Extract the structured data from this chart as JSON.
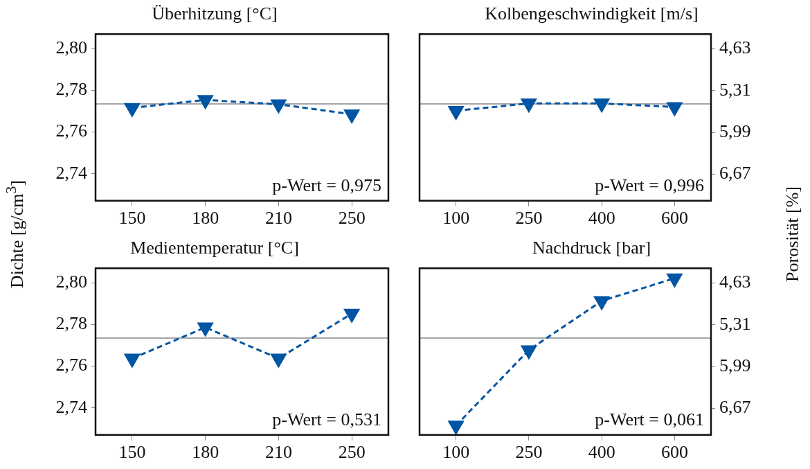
{
  "chart_data": [
    {
      "type": "line",
      "title": "Überhitzung [°C]",
      "ylabel": "Dichte [g/cm$^{3}$]",
      "categories": [
        "150",
        "180",
        "210",
        "250"
      ],
      "values": [
        2.7716,
        2.7754,
        2.7733,
        2.7685
      ],
      "color": "#0055a4",
      "marker": "triangle",
      "line_style": "dashed",
      "ylim": [
        2.727,
        2.807
      ],
      "yticks": [
        {
          "value": 2.74,
          "label": "2,74"
        },
        {
          "value": 2.76,
          "label": "2,76"
        },
        {
          "value": 2.78,
          "label": "2,78"
        },
        {
          "value": 2.8,
          "label": "2,80"
        }
      ],
      "ref_lines": [
        {
          "axis": "y",
          "value": 2.7735,
          "color": "#a6a6a6"
        }
      ],
      "annotations": [
        "p-Wert = 0,975"
      ],
      "tick_labels": [
        "x",
        "y"
      ]
    },
    {
      "type": "line",
      "title": "Kolbengeschwindigkeit [m/s]",
      "y2label": "Porosität [%]",
      "categories": [
        "100",
        "250",
        "400",
        "600"
      ],
      "values": [
        2.7702,
        2.7737,
        2.7737,
        2.772
      ],
      "color": "#0055a4",
      "marker": "triangle",
      "line_style": "dashed",
      "ylim": [
        2.727,
        2.807
      ],
      "y2lim": [
        7.1,
        4.39
      ],
      "y2ticks": [
        {
          "value": 4.63,
          "label": "4,63"
        },
        {
          "value": 5.31,
          "label": "5,31"
        },
        {
          "value": 5.99,
          "label": "5,99"
        },
        {
          "value": 6.67,
          "label": "6,67"
        }
      ],
      "ref_lines": [
        {
          "axis": "y",
          "value": 2.7735,
          "color": "#a6a6a6"
        }
      ],
      "annotations": [
        "p-Wert = 0,996"
      ],
      "tick_labels": [
        "x",
        "y2"
      ]
    },
    {
      "type": "line",
      "title": "Medientemperatur [°C]",
      "categories": [
        "150",
        "180",
        "210",
        "250"
      ],
      "values": [
        2.7637,
        2.7786,
        2.7637,
        2.7852
      ],
      "color": "#0055a4",
      "marker": "triangle",
      "line_style": "dashed",
      "ylim": [
        2.727,
        2.807
      ],
      "yticks": [
        {
          "value": 2.74,
          "label": "2,74"
        },
        {
          "value": 2.76,
          "label": "2,76"
        },
        {
          "value": 2.78,
          "label": "2,78"
        },
        {
          "value": 2.8,
          "label": "2,80"
        }
      ],
      "ref_lines": [
        {
          "axis": "y",
          "value": 2.7735,
          "color": "#a6a6a6"
        }
      ],
      "annotations": [
        "p-Wert = 0,531"
      ],
      "tick_labels": [
        "x",
        "y"
      ]
    },
    {
      "type": "line",
      "title": "Nachdruck [bar]",
      "categories": [
        "100",
        "250",
        "400",
        "600"
      ],
      "values": [
        2.7315,
        2.7677,
        2.7913,
        2.8022
      ],
      "color": "#0055a4",
      "marker": "triangle",
      "line_style": "dashed",
      "ylim": [
        2.727,
        2.807
      ],
      "y2lim": [
        7.1,
        4.39
      ],
      "y2ticks": [
        {
          "value": 4.63,
          "label": "4,63"
        },
        {
          "value": 5.31,
          "label": "5,31"
        },
        {
          "value": 5.99,
          "label": "5,99"
        },
        {
          "value": 6.67,
          "label": "6,67"
        }
      ],
      "ref_lines": [
        {
          "axis": "y",
          "value": 2.7735,
          "color": "#a6a6a6"
        }
      ],
      "annotations": [
        "p-Wert = 0,061"
      ],
      "tick_labels": [
        "x",
        "y2"
      ]
    }
  ]
}
